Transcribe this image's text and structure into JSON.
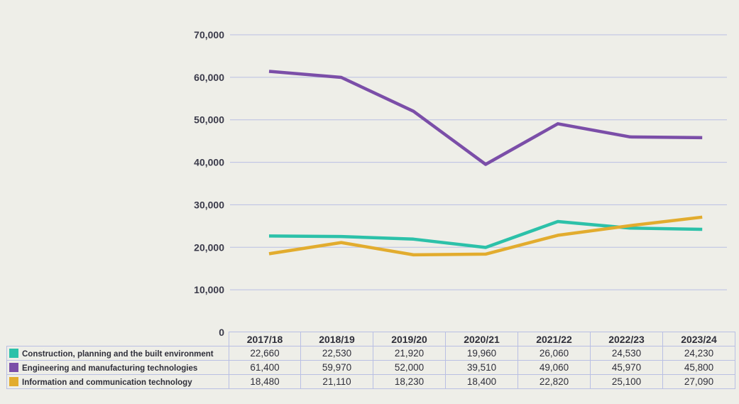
{
  "chart_data": {
    "type": "line",
    "title": "",
    "xlabel": "",
    "ylabel": "",
    "ylim": [
      0,
      70000
    ],
    "yticks": [
      0,
      10000,
      20000,
      30000,
      40000,
      50000,
      60000,
      70000
    ],
    "ytick_labels": [
      "0",
      "10,000",
      "20,000",
      "30,000",
      "40,000",
      "50,000",
      "60,000",
      "70,000"
    ],
    "grid": true,
    "categories": [
      "2017/18",
      "2018/19",
      "2019/20",
      "2020/21",
      "2021/22",
      "2022/23",
      "2023/24"
    ],
    "series": [
      {
        "name": "Construction, planning and the built environment",
        "color": "#2cc1a9",
        "values": [
          22660,
          22530,
          21920,
          19960,
          26060,
          24530,
          24230
        ],
        "labels": [
          "22,660",
          "22,530",
          "21,920",
          "19,960",
          "26,060",
          "24,530",
          "24,230"
        ]
      },
      {
        "name": "Engineering and manufacturing technologies",
        "color": "#7b4ea8",
        "values": [
          61400,
          59970,
          52000,
          39510,
          49060,
          45970,
          45800
        ],
        "labels": [
          "61,400",
          "59,970",
          "52,000",
          "39,510",
          "49,060",
          "45,970",
          "45,800"
        ]
      },
      {
        "name": "Information and communication technology",
        "color": "#e2ac2e",
        "values": [
          18480,
          21110,
          18230,
          18400,
          22820,
          25100,
          27090
        ],
        "labels": [
          "18,480",
          "21,110",
          "18,230",
          "18,400",
          "22,820",
          "25,100",
          "27,090"
        ]
      }
    ]
  }
}
